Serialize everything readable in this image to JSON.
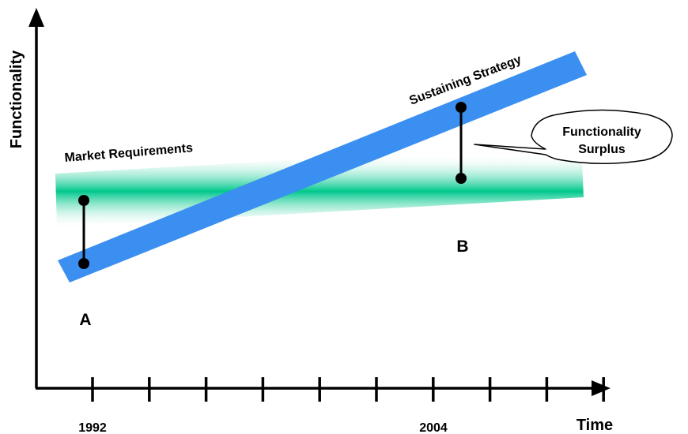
{
  "axes": {
    "y_label": "Functionality",
    "x_label": "Time",
    "tick_count": 10,
    "tick_labels": [
      {
        "index": 0,
        "text": "1992"
      },
      {
        "index": 7,
        "text": "2004"
      }
    ]
  },
  "bands": {
    "market": {
      "label": "Market Requirements",
      "color": "#00c88c"
    },
    "sustaining": {
      "label": "Sustaining Strategy",
      "color": "#3a8ff0"
    }
  },
  "points": {
    "a": {
      "label": "A"
    },
    "b": {
      "label": "B"
    }
  },
  "callout": {
    "line1": "Functionality",
    "line2": "Surplus"
  }
}
